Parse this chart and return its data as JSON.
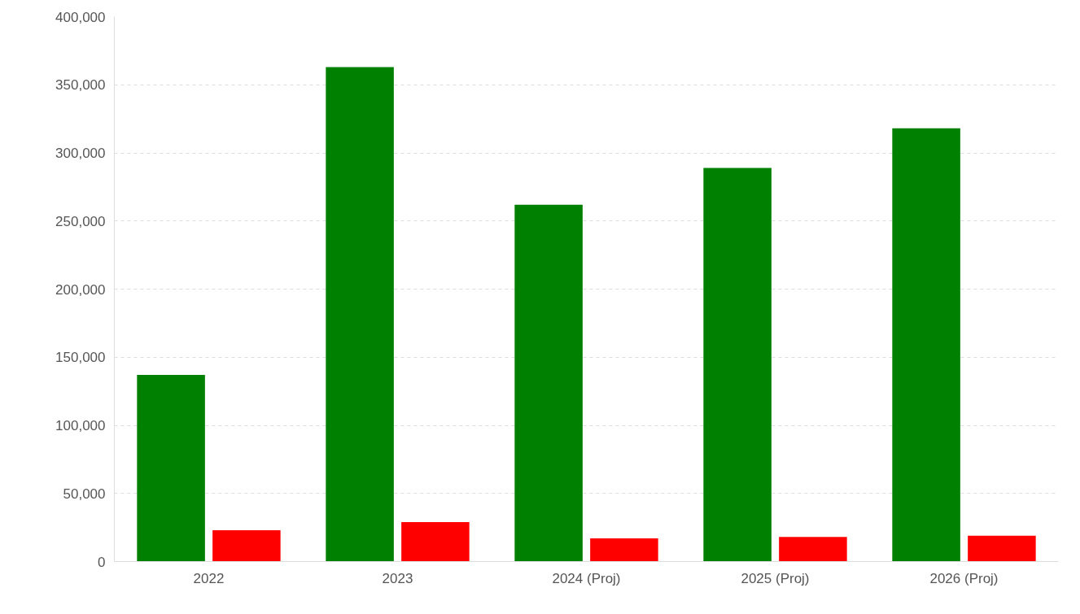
{
  "chart_data": {
    "type": "bar",
    "categories": [
      "2022",
      "2023",
      "2024 (Proj)",
      "2025 (Proj)",
      "2026 (Proj)"
    ],
    "series": [
      {
        "color": "#008000",
        "values": [
          137000,
          363000,
          262000,
          289000,
          318000
        ]
      },
      {
        "color": "#ff0000",
        "values": [
          23000,
          29000,
          17000,
          18000,
          19000
        ]
      }
    ],
    "ylim": [
      0,
      400000
    ],
    "yticks": [
      {
        "value": 0,
        "label": "0"
      },
      {
        "value": 50000,
        "label": "50,000"
      },
      {
        "value": 100000,
        "label": "100,000"
      },
      {
        "value": 150000,
        "label": "150,000"
      },
      {
        "value": 200000,
        "label": "200,000"
      },
      {
        "value": 250000,
        "label": "250,000"
      },
      {
        "value": 300000,
        "label": "300,000"
      },
      {
        "value": 350000,
        "label": "350,000"
      },
      {
        "value": 400000,
        "label": "400,000"
      }
    ],
    "grid": "y"
  }
}
